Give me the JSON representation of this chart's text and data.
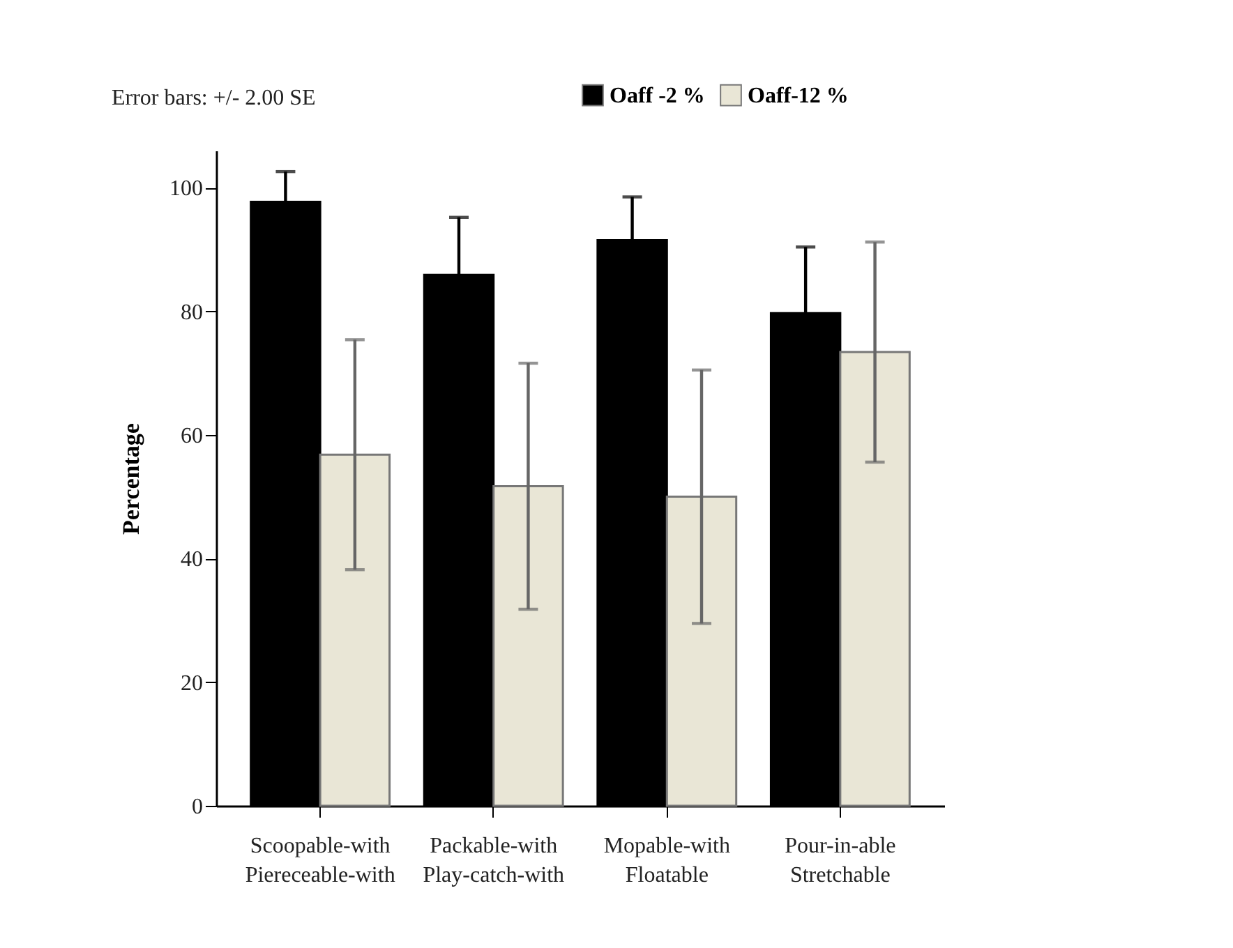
{
  "chart_data": {
    "type": "bar",
    "ylabel": "Percentage",
    "categories": [
      "Scoopable-with\nPiereceable-with",
      "Packable-with\nPlay-catch-with",
      "Mopable-with\nFloatable",
      "Pour-in-able\nStretchable"
    ],
    "series": [
      {
        "name": "Oaff -2 %",
        "color": "#000000",
        "values": [
          97.7,
          85.9,
          91.5,
          79.7
        ],
        "errors": [
          4.9,
          9.3,
          7.0,
          10.7
        ]
      },
      {
        "name": "Oaff-12 %",
        "color": "#e9e6d6",
        "values": [
          56.8,
          51.7,
          50.0,
          73.4
        ],
        "errors": [
          18.6,
          19.9,
          20.5,
          17.8
        ]
      }
    ],
    "ylim": [
      0,
      106
    ],
    "yticks": [
      0,
      20,
      40,
      60,
      80,
      100
    ],
    "grid": false,
    "legend": "top right",
    "annotations": [
      "Error bars: +/- 2.00 SE"
    ]
  }
}
